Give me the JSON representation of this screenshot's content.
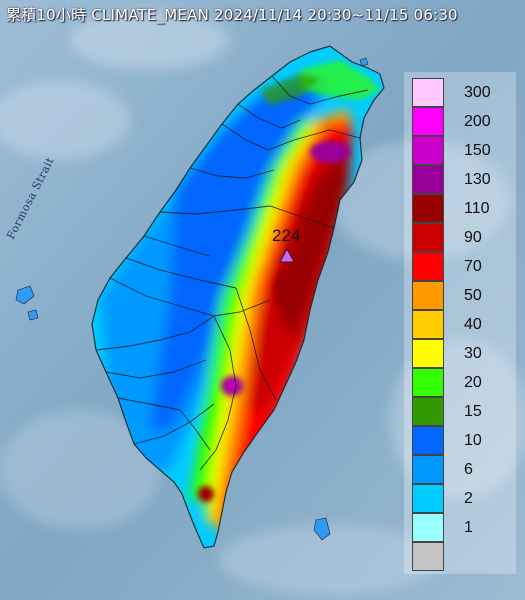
{
  "title": "累積10小時 CLIMATE_MEAN 2024/11/14 20:30~11/15 06:30",
  "water_label": "Formosa Strait",
  "max_station": {
    "value": "224"
  },
  "legend": [
    {
      "label": "300",
      "color": "#ffc8ff"
    },
    {
      "label": "200",
      "color": "#ff00ff"
    },
    {
      "label": "150",
      "color": "#cc00cc"
    },
    {
      "label": "130",
      "color": "#990099"
    },
    {
      "label": "110",
      "color": "#990000"
    },
    {
      "label": "90",
      "color": "#cc0000"
    },
    {
      "label": "70",
      "color": "#ff0000"
    },
    {
      "label": "50",
      "color": "#ff9900"
    },
    {
      "label": "40",
      "color": "#ffcc00"
    },
    {
      "label": "30",
      "color": "#ffff00"
    },
    {
      "label": "20",
      "color": "#33ff00"
    },
    {
      "label": "15",
      "color": "#339900"
    },
    {
      "label": "10",
      "color": "#0066ff"
    },
    {
      "label": "6",
      "color": "#0099ff"
    },
    {
      "label": "2",
      "color": "#00ccff"
    },
    {
      "label": "1",
      "color": "#99ffff"
    },
    {
      "label": "",
      "color": "#c4c4c4"
    }
  ]
}
